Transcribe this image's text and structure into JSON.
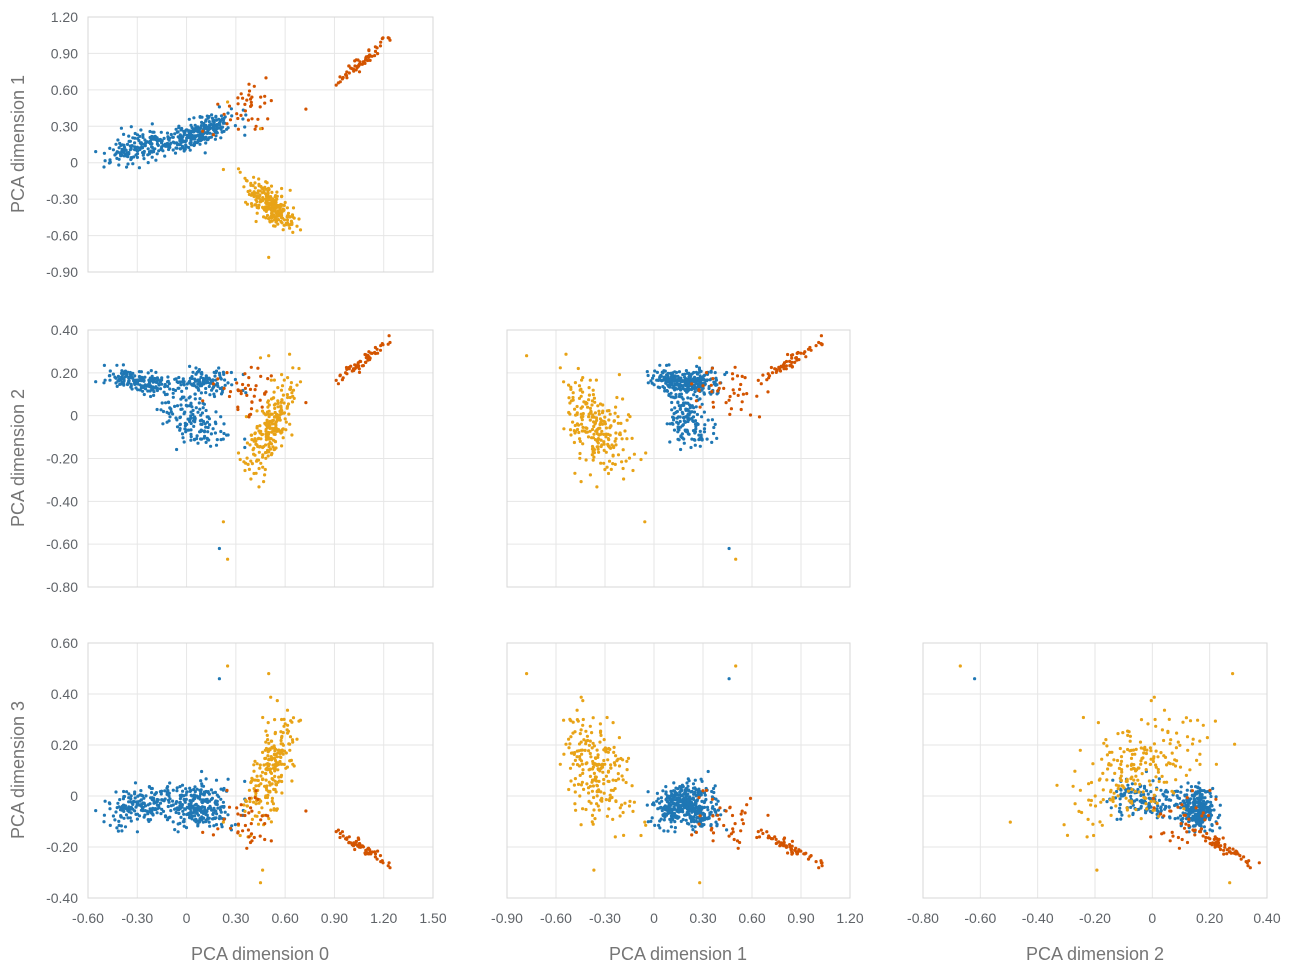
{
  "chart_data": {
    "type": "scatter",
    "layout": "pair-plot",
    "dimension_labels": [
      "PCA dimension 0",
      "PCA dimension 1",
      "PCA dimension 2",
      "PCA dimension 3"
    ],
    "row_labels": [
      "PCA dimension 1",
      "PCA dimension 2",
      "PCA dimension 3"
    ],
    "col_labels": [
      "PCA dimension 0",
      "PCA dimension 1",
      "PCA dimension 2"
    ],
    "series_colors": [
      "#1f77b4",
      "#e8a317",
      "#d35400"
    ],
    "x_axes": [
      {
        "range": [
          -0.6,
          1.5
        ],
        "ticks": [
          -0.6,
          -0.3,
          0,
          0.3,
          0.6,
          0.9,
          1.2,
          1.5
        ],
        "tick_labels": [
          "-0.60",
          "-0.30",
          "0",
          "0.30",
          "0.60",
          "0.90",
          "1.20",
          "1.50"
        ]
      },
      {
        "range": [
          -0.9,
          1.2
        ],
        "ticks": [
          -0.9,
          -0.6,
          -0.3,
          0,
          0.3,
          0.6,
          0.9,
          1.2
        ],
        "tick_labels": [
          "-0.90",
          "-0.60",
          "-0.30",
          "0",
          "0.30",
          "0.60",
          "0.90",
          "1.20"
        ]
      },
      {
        "range": [
          -0.8,
          0.4
        ],
        "ticks": [
          -0.8,
          -0.6,
          -0.4,
          -0.2,
          0,
          0.2,
          0.4
        ],
        "tick_labels": [
          "-0.80",
          "-0.60",
          "-0.40",
          "-0.20",
          "0",
          "0.20",
          "0.40"
        ]
      }
    ],
    "y_axes": [
      {
        "range": [
          -0.9,
          1.2
        ],
        "ticks": [
          -0.9,
          -0.6,
          -0.3,
          0,
          0.3,
          0.6,
          0.9,
          1.2
        ],
        "tick_labels": [
          "-0.90",
          "-0.60",
          "-0.30",
          "0",
          "0.30",
          "0.60",
          "0.90",
          "1.20"
        ]
      },
      {
        "range": [
          -0.8,
          0.4
        ],
        "ticks": [
          -0.8,
          -0.6,
          -0.4,
          -0.2,
          0,
          0.2,
          0.4
        ],
        "tick_labels": [
          "-0.80",
          "-0.60",
          "-0.40",
          "-0.20",
          "0",
          "0.20",
          "0.40"
        ]
      },
      {
        "range": [
          -0.4,
          0.6
        ],
        "ticks": [
          -0.4,
          -0.2,
          0,
          0.2,
          0.4,
          0.6
        ],
        "tick_labels": [
          "-0.40",
          "-0.20",
          "0",
          "0.20",
          "0.40",
          "0.60"
        ]
      }
    ],
    "panels": [
      {
        "row": 0,
        "col": 0,
        "x_dim": 0,
        "y_dim": 1
      },
      {
        "row": 1,
        "col": 0,
        "x_dim": 0,
        "y_dim": 2
      },
      {
        "row": 1,
        "col": 1,
        "x_dim": 1,
        "y_dim": 2
      },
      {
        "row": 2,
        "col": 0,
        "x_dim": 0,
        "y_dim": 3
      },
      {
        "row": 2,
        "col": 1,
        "x_dim": 1,
        "y_dim": 3
      },
      {
        "row": 2,
        "col": 2,
        "x_dim": 2,
        "y_dim": 3
      }
    ],
    "clusters": [
      {
        "series": 0,
        "count": 170,
        "center": [
          -0.28,
          0.14,
          0.16,
          -0.04
        ],
        "spread": [
          0.1,
          0.08,
          0.03,
          0.04
        ],
        "corr": {
          "0-1": 0.55,
          "0-2": -0.4,
          "0-3": 0.35,
          "1-2": -0.2,
          "1-3": 0.1,
          "2-3": -0.3
        }
      },
      {
        "series": 0,
        "count": 150,
        "center": [
          0.05,
          0.22,
          -0.02,
          -0.02
        ],
        "spread": [
          0.1,
          0.07,
          0.06,
          0.04
        ],
        "corr": {
          "0-1": 0.6,
          "0-2": -0.5,
          "0-3": 0.2,
          "1-2": -0.2,
          "1-3": 0.1,
          "2-3": -0.4
        }
      },
      {
        "series": 0,
        "count": 120,
        "center": [
          0.1,
          0.28,
          0.16,
          -0.07
        ],
        "spread": [
          0.09,
          0.06,
          0.03,
          0.03
        ],
        "corr": {
          "0-1": 0.7,
          "0-2": -0.2,
          "0-3": 0.1,
          "1-2": 0.0,
          "1-3": 0.0,
          "2-3": -0.2
        }
      },
      {
        "series": 1,
        "count": 230,
        "center": [
          0.52,
          -0.36,
          -0.04,
          0.1
        ],
        "spread": [
          0.07,
          0.1,
          0.11,
          0.11
        ],
        "corr": {
          "0-1": -0.7,
          "0-2": 0.7,
          "0-3": 0.6,
          "1-2": -0.7,
          "1-3": -0.7,
          "2-3": 0.75
        }
      },
      {
        "series": 2,
        "count": 60,
        "center": [
          1.06,
          0.82,
          0.25,
          -0.2
        ],
        "spread": [
          0.1,
          0.12,
          0.06,
          0.04
        ],
        "corr": {
          "0-1": 0.98,
          "0-2": 0.98,
          "0-3": -0.98,
          "1-2": 0.98,
          "1-3": -0.98,
          "2-3": -0.98
        }
      },
      {
        "series": 2,
        "count": 40,
        "center": [
          0.35,
          0.45,
          0.1,
          -0.1
        ],
        "spread": [
          0.12,
          0.12,
          0.08,
          0.06
        ],
        "corr": {
          "0-1": 0.3,
          "0-2": 0.2,
          "0-3": -0.2,
          "1-2": 0.2,
          "1-3": -0.2,
          "2-3": -0.3
        }
      }
    ],
    "outliers": [
      {
        "series": 0,
        "point": [
          0.2,
          0.46,
          -0.62,
          0.46
        ]
      },
      {
        "series": 1,
        "point": [
          0.25,
          0.5,
          -0.67,
          0.51
        ]
      },
      {
        "series": 1,
        "point": [
          0.5,
          -0.78,
          0.28,
          0.48
        ]
      },
      {
        "series": 1,
        "point": [
          0.45,
          0.28,
          0.27,
          -0.34
        ]
      }
    ]
  }
}
